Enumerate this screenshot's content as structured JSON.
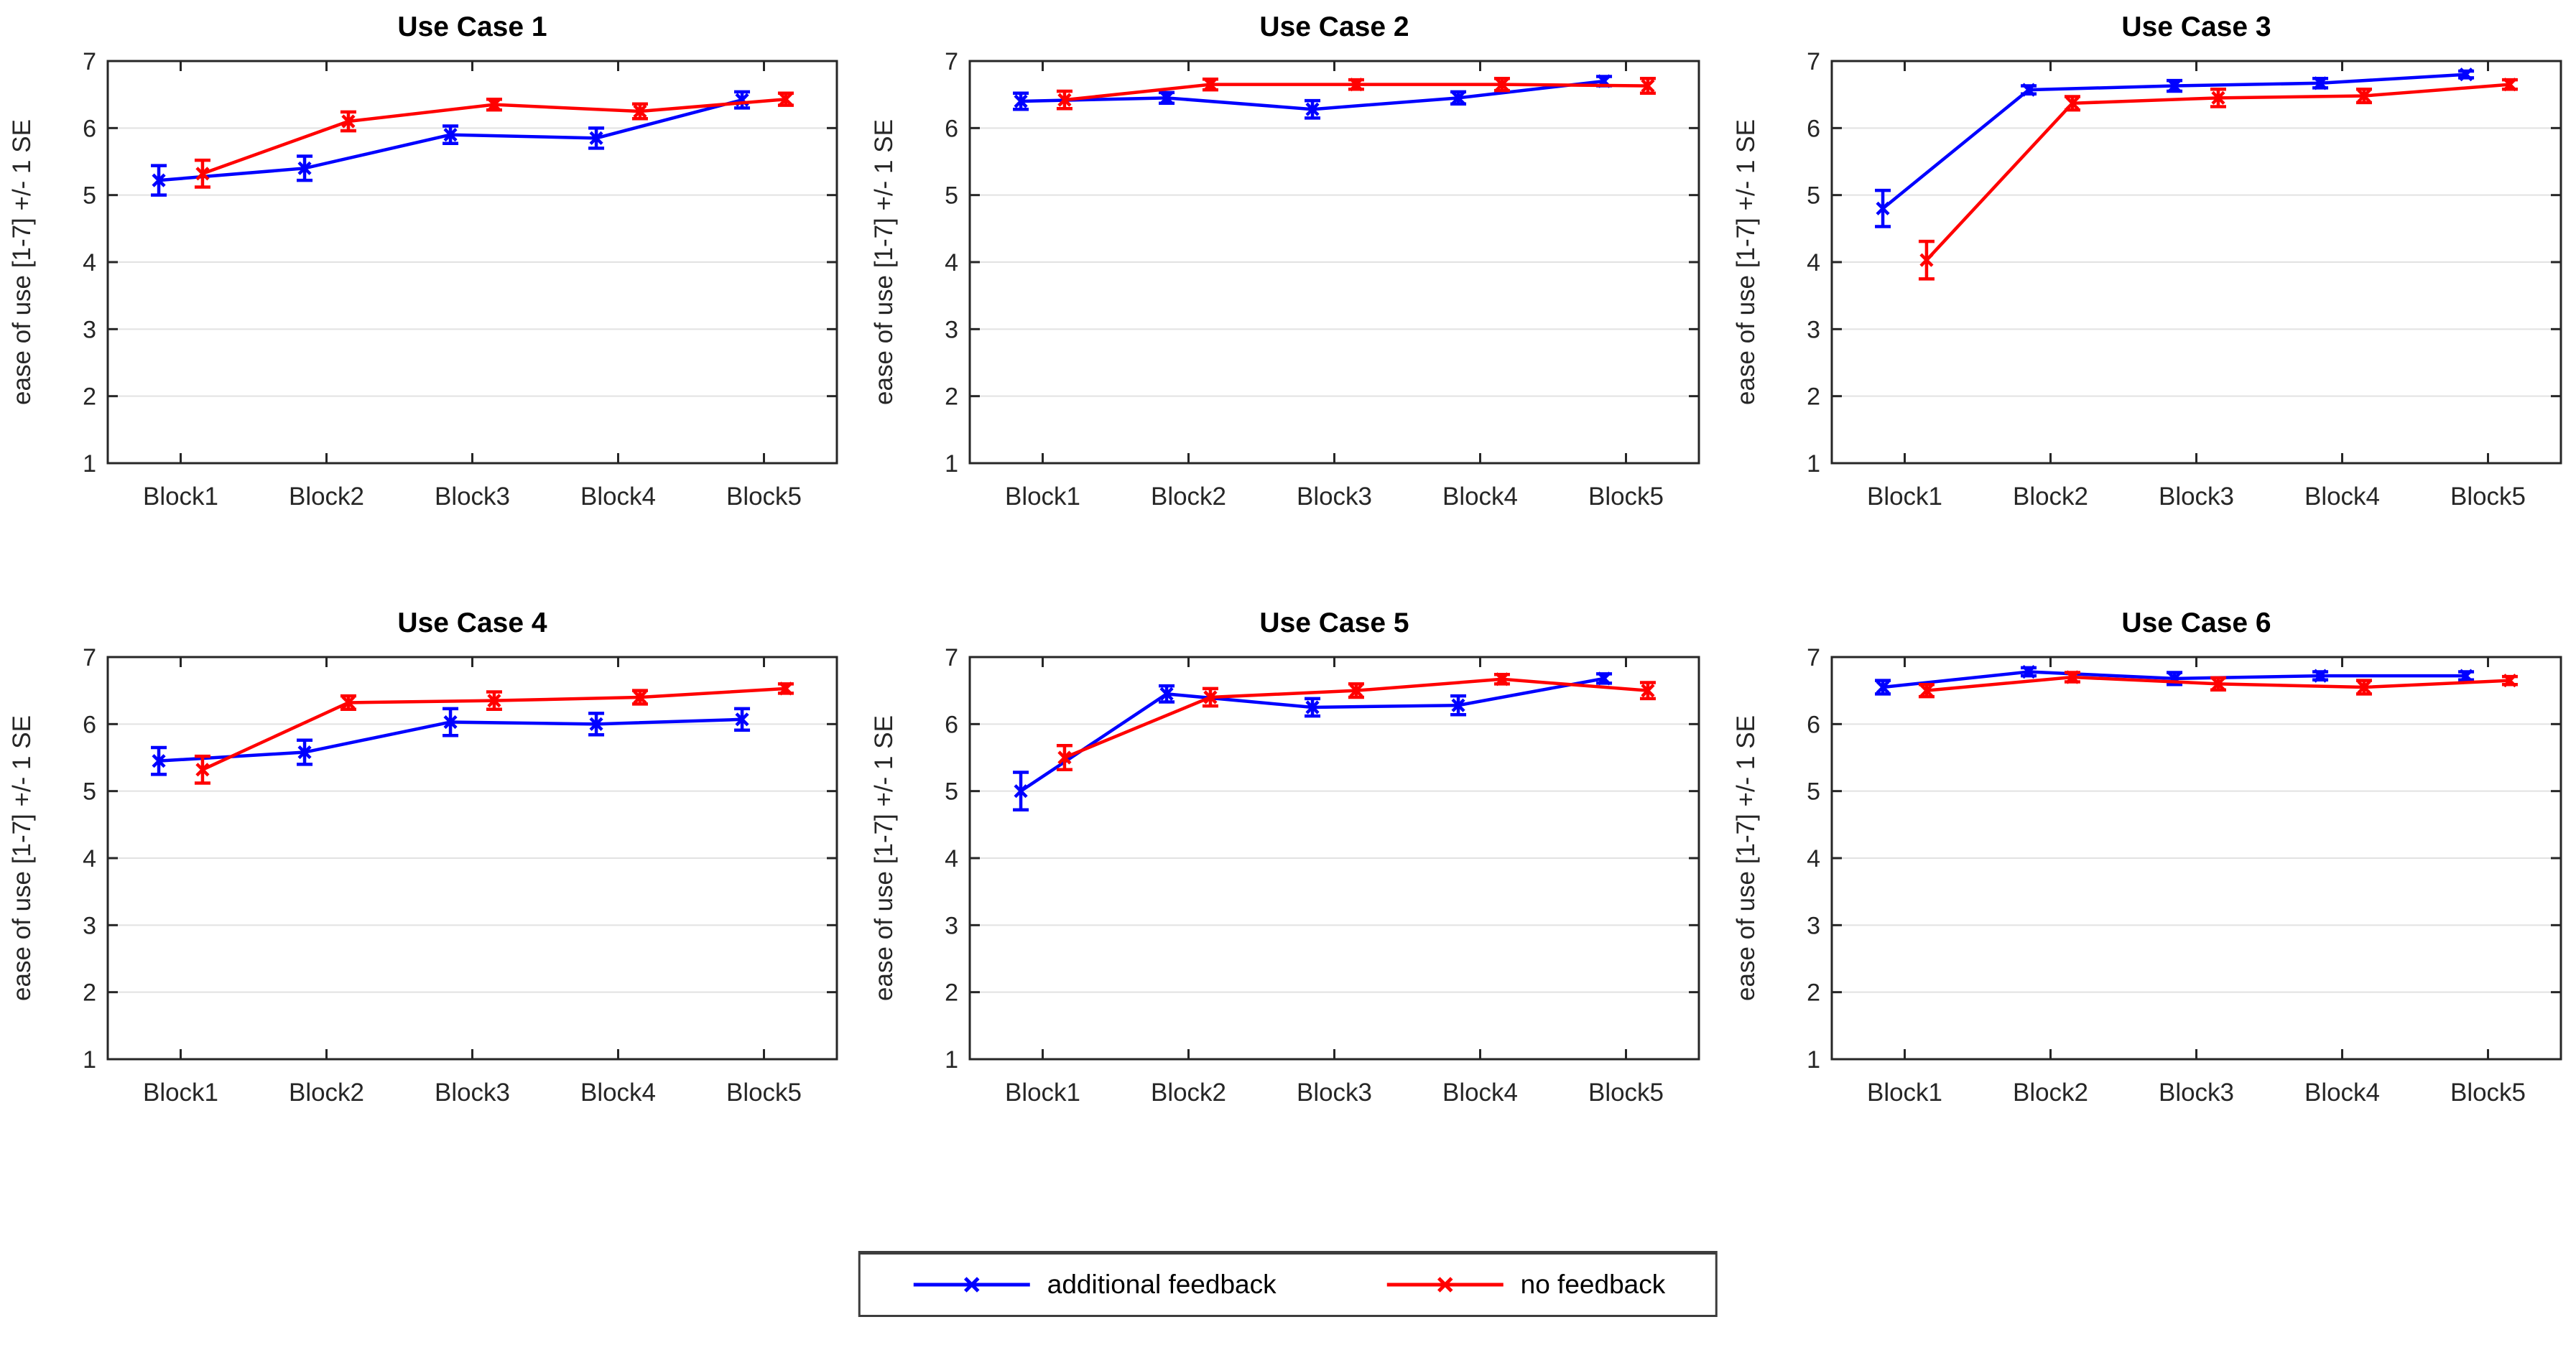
{
  "figure": {
    "background": "#ffffff",
    "axis_color": "#262626",
    "grid_color": "#e2e2e2"
  },
  "legend": {
    "entries": [
      {
        "label": "additional feedback",
        "color": "#0000ff",
        "marker": "x"
      },
      {
        "label": "no feedback",
        "color": "#ff0000",
        "marker": "x"
      }
    ]
  },
  "chart_data": [
    {
      "type": "line",
      "title": "Use Case 1",
      "ylabel": "ease of use [1-7] +/- 1 SE",
      "categories": [
        "Block1",
        "Block2",
        "Block3",
        "Block4",
        "Block5"
      ],
      "ylim": [
        1,
        7
      ],
      "yticks": [
        1,
        2,
        3,
        4,
        5,
        6,
        7
      ],
      "grid": "horizontal",
      "series": [
        {
          "name": "additional feedback",
          "color": "#0000ff",
          "marker": "x",
          "values": [
            5.22,
            5.4,
            5.9,
            5.85,
            6.42
          ],
          "se": [
            0.22,
            0.18,
            0.13,
            0.15,
            0.12
          ]
        },
        {
          "name": "no feedback",
          "color": "#ff0000",
          "marker": "x",
          "values": [
            5.32,
            6.1,
            6.35,
            6.25,
            6.43
          ],
          "se": [
            0.2,
            0.14,
            0.08,
            0.11,
            0.09
          ]
        }
      ]
    },
    {
      "type": "line",
      "title": "Use Case 2",
      "ylabel": "ease of use [1-7] +/- 1 SE",
      "categories": [
        "Block1",
        "Block2",
        "Block3",
        "Block4",
        "Block5"
      ],
      "ylim": [
        1,
        7
      ],
      "yticks": [
        1,
        2,
        3,
        4,
        5,
        6,
        7
      ],
      "grid": "horizontal",
      "series": [
        {
          "name": "additional feedback",
          "color": "#0000ff",
          "marker": "x",
          "values": [
            6.4,
            6.45,
            6.28,
            6.45,
            6.7
          ],
          "se": [
            0.12,
            0.08,
            0.13,
            0.09,
            0.07
          ]
        },
        {
          "name": "no feedback",
          "color": "#ff0000",
          "marker": "x",
          "values": [
            6.42,
            6.65,
            6.65,
            6.65,
            6.63
          ],
          "se": [
            0.13,
            0.08,
            0.07,
            0.09,
            0.11
          ]
        }
      ]
    },
    {
      "type": "line",
      "title": "Use Case 3",
      "ylabel": "ease of use [1-7] +/- 1 SE",
      "categories": [
        "Block1",
        "Block2",
        "Block3",
        "Block4",
        "Block5"
      ],
      "ylim": [
        1,
        7
      ],
      "yticks": [
        1,
        2,
        3,
        4,
        5,
        6,
        7
      ],
      "grid": "horizontal",
      "series": [
        {
          "name": "additional feedback",
          "color": "#0000ff",
          "marker": "x",
          "values": [
            4.8,
            6.57,
            6.63,
            6.67,
            6.8
          ],
          "se": [
            0.27,
            0.06,
            0.08,
            0.07,
            0.05
          ]
        },
        {
          "name": "no feedback",
          "color": "#ff0000",
          "marker": "x",
          "values": [
            4.03,
            6.37,
            6.45,
            6.48,
            6.65
          ],
          "se": [
            0.28,
            0.1,
            0.13,
            0.1,
            0.07
          ]
        }
      ]
    },
    {
      "type": "line",
      "title": "Use Case 4",
      "ylabel": "ease of use [1-7] +/- 1 SE",
      "categories": [
        "Block1",
        "Block2",
        "Block3",
        "Block4",
        "Block5"
      ],
      "ylim": [
        1,
        7
      ],
      "yticks": [
        1,
        2,
        3,
        4,
        5,
        6,
        7
      ],
      "grid": "horizontal",
      "series": [
        {
          "name": "additional feedback",
          "color": "#0000ff",
          "marker": "x",
          "values": [
            5.45,
            5.58,
            6.03,
            6.0,
            6.07
          ],
          "se": [
            0.2,
            0.18,
            0.2,
            0.16,
            0.16
          ]
        },
        {
          "name": "no feedback",
          "color": "#ff0000",
          "marker": "x",
          "values": [
            5.32,
            6.32,
            6.35,
            6.4,
            6.53
          ],
          "se": [
            0.2,
            0.1,
            0.13,
            0.1,
            0.07
          ]
        }
      ]
    },
    {
      "type": "line",
      "title": "Use Case 5",
      "ylabel": "ease of use [1-7] +/- 1 SE",
      "categories": [
        "Block1",
        "Block2",
        "Block3",
        "Block4",
        "Block5"
      ],
      "ylim": [
        1,
        7
      ],
      "yticks": [
        1,
        2,
        3,
        4,
        5,
        6,
        7
      ],
      "grid": "horizontal",
      "series": [
        {
          "name": "additional feedback",
          "color": "#0000ff",
          "marker": "x",
          "values": [
            5.0,
            6.45,
            6.25,
            6.28,
            6.68
          ],
          "se": [
            0.28,
            0.12,
            0.13,
            0.14,
            0.07
          ]
        },
        {
          "name": "no feedback",
          "color": "#ff0000",
          "marker": "x",
          "values": [
            5.5,
            6.4,
            6.5,
            6.67,
            6.5
          ],
          "se": [
            0.18,
            0.13,
            0.1,
            0.07,
            0.12
          ]
        }
      ]
    },
    {
      "type": "line",
      "title": "Use Case 6",
      "ylabel": "ease of use [1-7] +/- 1 SE",
      "categories": [
        "Block1",
        "Block2",
        "Block3",
        "Block4",
        "Block5"
      ],
      "ylim": [
        1,
        7
      ],
      "yticks": [
        1,
        2,
        3,
        4,
        5,
        6,
        7
      ],
      "grid": "horizontal",
      "series": [
        {
          "name": "additional feedback",
          "color": "#0000ff",
          "marker": "x",
          "values": [
            6.55,
            6.78,
            6.68,
            6.72,
            6.72
          ],
          "se": [
            0.1,
            0.06,
            0.09,
            0.06,
            0.06
          ]
        },
        {
          "name": "no feedback",
          "color": "#ff0000",
          "marker": "x",
          "values": [
            6.5,
            6.7,
            6.6,
            6.55,
            6.65
          ],
          "se": [
            0.09,
            0.07,
            0.09,
            0.1,
            0.06
          ]
        }
      ]
    }
  ]
}
